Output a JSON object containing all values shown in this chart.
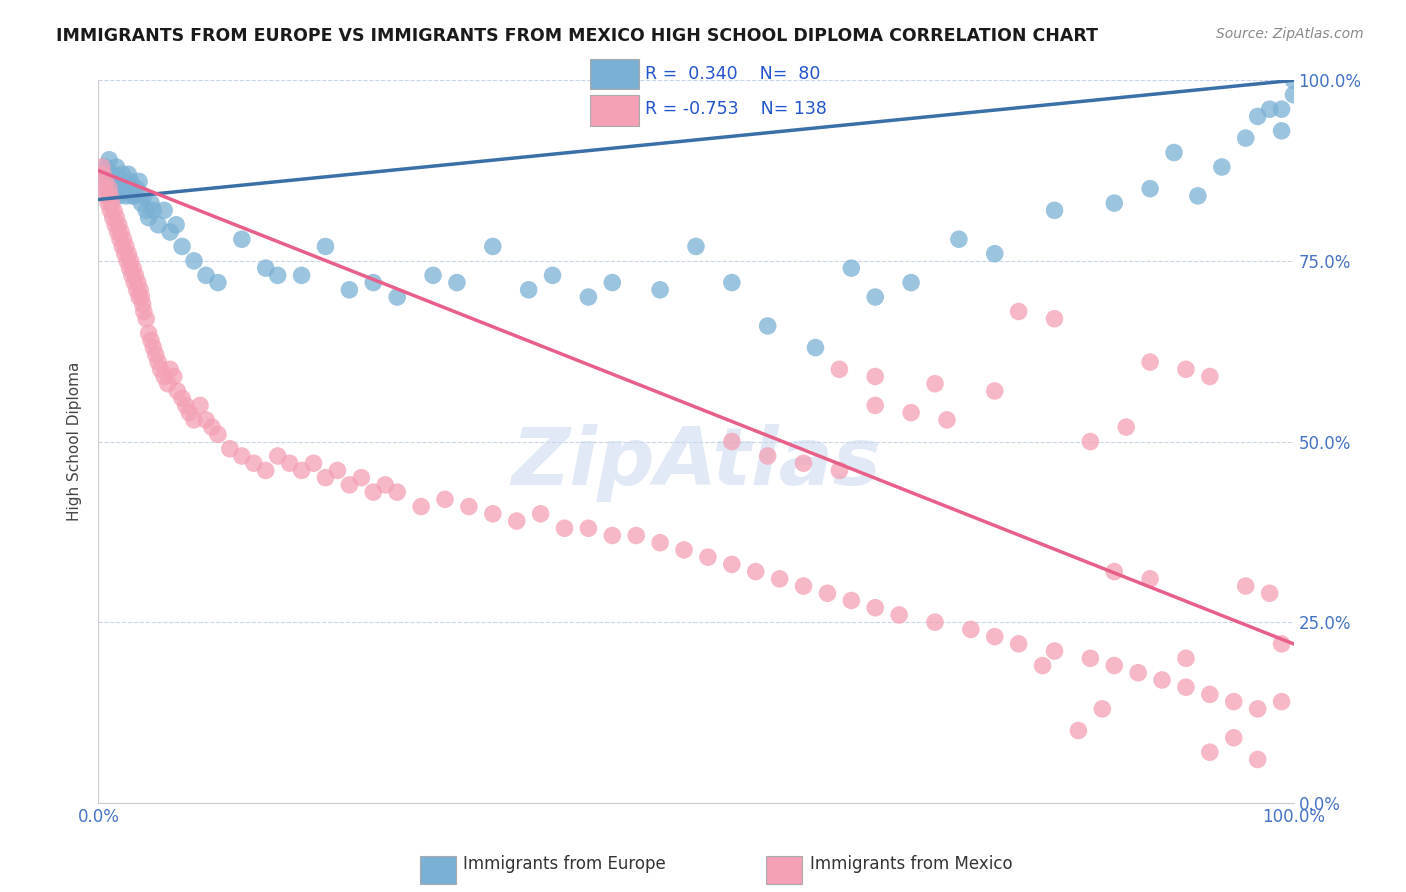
{
  "title": "IMMIGRANTS FROM EUROPE VS IMMIGRANTS FROM MEXICO HIGH SCHOOL DIPLOMA CORRELATION CHART",
  "source": "Source: ZipAtlas.com",
  "ylabel": "High School Diploma",
  "y_tick_labels": [
    "0.0%",
    "25.0%",
    "50.0%",
    "75.0%",
    "100.0%"
  ],
  "y_tick_positions": [
    0.0,
    0.25,
    0.5,
    0.75,
    1.0
  ],
  "watermark": "ZipAtlas",
  "legend_europe": "Immigrants from Europe",
  "legend_mexico": "Immigrants from Mexico",
  "R_europe": "0.340",
  "N_europe": "80",
  "R_mexico": "-0.753",
  "N_mexico": "138",
  "color_europe": "#7ab0d4",
  "color_mexico": "#f4a0b5",
  "color_europe_line": "#3a6fa8",
  "color_mexico_line": "#e8608a",
  "color_grid": "#c8d4e8",
  "background_color": "#ffffff",
  "title_fontsize": 12.5,
  "europe_x": [
    0.005,
    0.006,
    0.007,
    0.008,
    0.009,
    0.01,
    0.01,
    0.011,
    0.012,
    0.013,
    0.014,
    0.015,
    0.016,
    0.017,
    0.018,
    0.019,
    0.02,
    0.021,
    0.022,
    0.023,
    0.024,
    0.025,
    0.026,
    0.027,
    0.028,
    0.03,
    0.032,
    0.034,
    0.036,
    0.038,
    0.04,
    0.042,
    0.044,
    0.046,
    0.05,
    0.055,
    0.06,
    0.065,
    0.07,
    0.08,
    0.09,
    0.1,
    0.12,
    0.14,
    0.15,
    0.17,
    0.19,
    0.21,
    0.23,
    0.25,
    0.28,
    0.3,
    0.33,
    0.36,
    0.38,
    0.41,
    0.43,
    0.47,
    0.5,
    0.53,
    0.56,
    0.6,
    0.63,
    0.65,
    0.68,
    0.72,
    0.75,
    0.8,
    0.85,
    0.88,
    0.9,
    0.92,
    0.94,
    0.96,
    0.97,
    0.98,
    0.99,
    0.99,
    1.0,
    1.0
  ],
  "europe_y": [
    0.87,
    0.88,
    0.86,
    0.85,
    0.89,
    0.84,
    0.87,
    0.86,
    0.87,
    0.85,
    0.86,
    0.88,
    0.85,
    0.84,
    0.86,
    0.85,
    0.87,
    0.85,
    0.86,
    0.84,
    0.85,
    0.87,
    0.85,
    0.86,
    0.84,
    0.84,
    0.85,
    0.86,
    0.83,
    0.84,
    0.82,
    0.81,
    0.83,
    0.82,
    0.8,
    0.82,
    0.79,
    0.8,
    0.77,
    0.75,
    0.73,
    0.72,
    0.78,
    0.74,
    0.73,
    0.73,
    0.77,
    0.71,
    0.72,
    0.7,
    0.73,
    0.72,
    0.77,
    0.71,
    0.73,
    0.7,
    0.72,
    0.71,
    0.77,
    0.72,
    0.66,
    0.63,
    0.74,
    0.7,
    0.72,
    0.78,
    0.76,
    0.82,
    0.83,
    0.85,
    0.9,
    0.84,
    0.88,
    0.92,
    0.95,
    0.96,
    0.93,
    0.96,
    0.98,
    1.0
  ],
  "mexico_x": [
    0.003,
    0.004,
    0.005,
    0.006,
    0.007,
    0.008,
    0.009,
    0.01,
    0.01,
    0.011,
    0.012,
    0.013,
    0.014,
    0.015,
    0.016,
    0.017,
    0.018,
    0.019,
    0.02,
    0.021,
    0.022,
    0.023,
    0.024,
    0.025,
    0.026,
    0.027,
    0.028,
    0.029,
    0.03,
    0.031,
    0.032,
    0.033,
    0.034,
    0.035,
    0.036,
    0.037,
    0.038,
    0.04,
    0.042,
    0.044,
    0.046,
    0.048,
    0.05,
    0.052,
    0.055,
    0.058,
    0.06,
    0.063,
    0.066,
    0.07,
    0.073,
    0.076,
    0.08,
    0.085,
    0.09,
    0.095,
    0.1,
    0.11,
    0.12,
    0.13,
    0.14,
    0.15,
    0.16,
    0.17,
    0.18,
    0.19,
    0.2,
    0.21,
    0.22,
    0.23,
    0.24,
    0.25,
    0.27,
    0.29,
    0.31,
    0.33,
    0.35,
    0.37,
    0.39,
    0.41,
    0.43,
    0.45,
    0.47,
    0.49,
    0.51,
    0.53,
    0.55,
    0.57,
    0.59,
    0.61,
    0.63,
    0.65,
    0.67,
    0.7,
    0.73,
    0.75,
    0.77,
    0.8,
    0.83,
    0.85,
    0.87,
    0.89,
    0.91,
    0.93,
    0.95,
    0.97,
    0.99,
    0.53,
    0.56,
    0.59,
    0.62,
    0.65,
    0.68,
    0.71,
    0.62,
    0.65,
    0.7,
    0.75,
    0.77,
    0.8,
    0.83,
    0.86,
    0.88,
    0.91,
    0.93,
    0.96,
    0.98,
    0.99,
    0.85,
    0.88,
    0.91,
    0.93,
    0.95,
    0.97,
    0.79,
    0.82,
    0.84
  ],
  "mexico_y": [
    0.88,
    0.87,
    0.85,
    0.86,
    0.84,
    0.83,
    0.85,
    0.82,
    0.84,
    0.83,
    0.81,
    0.82,
    0.8,
    0.81,
    0.79,
    0.8,
    0.78,
    0.79,
    0.77,
    0.78,
    0.76,
    0.77,
    0.75,
    0.76,
    0.74,
    0.75,
    0.73,
    0.74,
    0.72,
    0.73,
    0.71,
    0.72,
    0.7,
    0.71,
    0.7,
    0.69,
    0.68,
    0.67,
    0.65,
    0.64,
    0.63,
    0.62,
    0.61,
    0.6,
    0.59,
    0.58,
    0.6,
    0.59,
    0.57,
    0.56,
    0.55,
    0.54,
    0.53,
    0.55,
    0.53,
    0.52,
    0.51,
    0.49,
    0.48,
    0.47,
    0.46,
    0.48,
    0.47,
    0.46,
    0.47,
    0.45,
    0.46,
    0.44,
    0.45,
    0.43,
    0.44,
    0.43,
    0.41,
    0.42,
    0.41,
    0.4,
    0.39,
    0.4,
    0.38,
    0.38,
    0.37,
    0.37,
    0.36,
    0.35,
    0.34,
    0.33,
    0.32,
    0.31,
    0.3,
    0.29,
    0.28,
    0.27,
    0.26,
    0.25,
    0.24,
    0.23,
    0.22,
    0.21,
    0.2,
    0.19,
    0.18,
    0.17,
    0.16,
    0.15,
    0.14,
    0.13,
    0.22,
    0.5,
    0.48,
    0.47,
    0.46,
    0.55,
    0.54,
    0.53,
    0.6,
    0.59,
    0.58,
    0.57,
    0.68,
    0.67,
    0.5,
    0.52,
    0.61,
    0.6,
    0.59,
    0.3,
    0.29,
    0.14,
    0.32,
    0.31,
    0.2,
    0.07,
    0.09,
    0.06,
    0.19,
    0.1,
    0.13
  ]
}
